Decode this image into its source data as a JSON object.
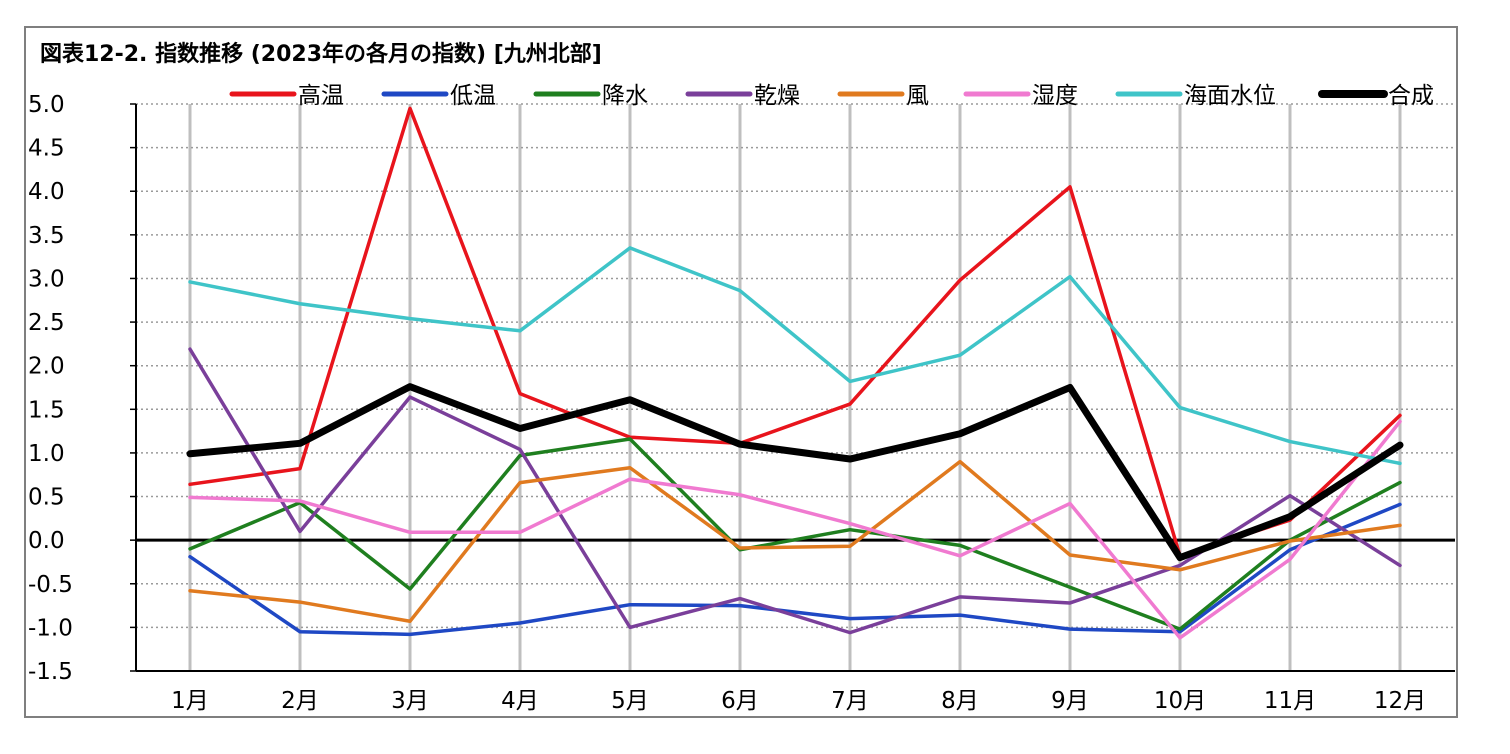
{
  "chart_data": {
    "type": "line",
    "title": "図表12-2. 指数推移 (2023年の各月の指数) [九州北部]",
    "xlabel": "",
    "ylabel": "",
    "categories": [
      "1月",
      "2月",
      "3月",
      "4月",
      "5月",
      "6月",
      "7月",
      "8月",
      "9月",
      "10月",
      "11月",
      "12月"
    ],
    "ylim": [
      -1.5,
      5.0
    ],
    "yticks": [
      5.0,
      4.5,
      4.0,
      3.5,
      3.0,
      2.5,
      2.0,
      1.5,
      1.0,
      0.5,
      0.0,
      -0.5,
      -1.0,
      -1.5
    ],
    "ytick_labels": [
      "5.0",
      "4.5",
      "4.0",
      "3.5",
      "3.0",
      "2.5",
      "2.0",
      "1.5",
      "1.0",
      "0.5",
      "0.0",
      "-0.5",
      "-1.0",
      "-1.5"
    ],
    "grid": true,
    "legend_position": "top",
    "series": [
      {
        "name": "高温",
        "color": "#e8141c",
        "values": [
          0.64,
          0.82,
          4.95,
          1.68,
          1.18,
          1.11,
          1.56,
          2.98,
          4.05,
          -0.18,
          0.23,
          1.43
        ]
      },
      {
        "name": "低温",
        "color": "#1f48c4",
        "values": [
          -0.19,
          -1.05,
          -1.08,
          -0.95,
          -0.74,
          -0.75,
          -0.9,
          -0.86,
          -1.02,
          -1.05,
          -0.11,
          0.41
        ]
      },
      {
        "name": "降水",
        "color": "#1f7f1f",
        "values": [
          -0.1,
          0.43,
          -0.56,
          0.97,
          1.16,
          -0.11,
          0.12,
          -0.06,
          -0.54,
          -1.02,
          0.0,
          0.66
        ]
      },
      {
        "name": "乾燥",
        "color": "#7a3f9a",
        "values": [
          2.19,
          0.1,
          1.64,
          1.04,
          -1.0,
          -0.67,
          -1.06,
          -0.65,
          -0.72,
          -0.29,
          0.51,
          -0.29
        ]
      },
      {
        "name": "風",
        "color": "#e07a1f",
        "values": [
          -0.58,
          -0.71,
          -0.93,
          0.66,
          0.83,
          -0.09,
          -0.07,
          0.9,
          -0.17,
          -0.34,
          -0.01,
          0.17
        ]
      },
      {
        "name": "湿度",
        "color": "#f07ad0",
        "values": [
          0.49,
          0.45,
          0.09,
          0.09,
          0.7,
          0.52,
          0.19,
          -0.18,
          0.42,
          -1.12,
          -0.22,
          1.36
        ]
      },
      {
        "name": "海面水位",
        "color": "#3fc4c8",
        "values": [
          2.96,
          2.71,
          2.54,
          2.4,
          3.35,
          2.86,
          1.82,
          2.12,
          3.02,
          1.52,
          1.13,
          0.88
        ]
      },
      {
        "name": "合成",
        "color": "#000000",
        "width": "bold",
        "values": [
          0.99,
          1.11,
          1.76,
          1.28,
          1.61,
          1.1,
          0.93,
          1.22,
          1.75,
          -0.2,
          0.27,
          1.09
        ]
      }
    ]
  }
}
